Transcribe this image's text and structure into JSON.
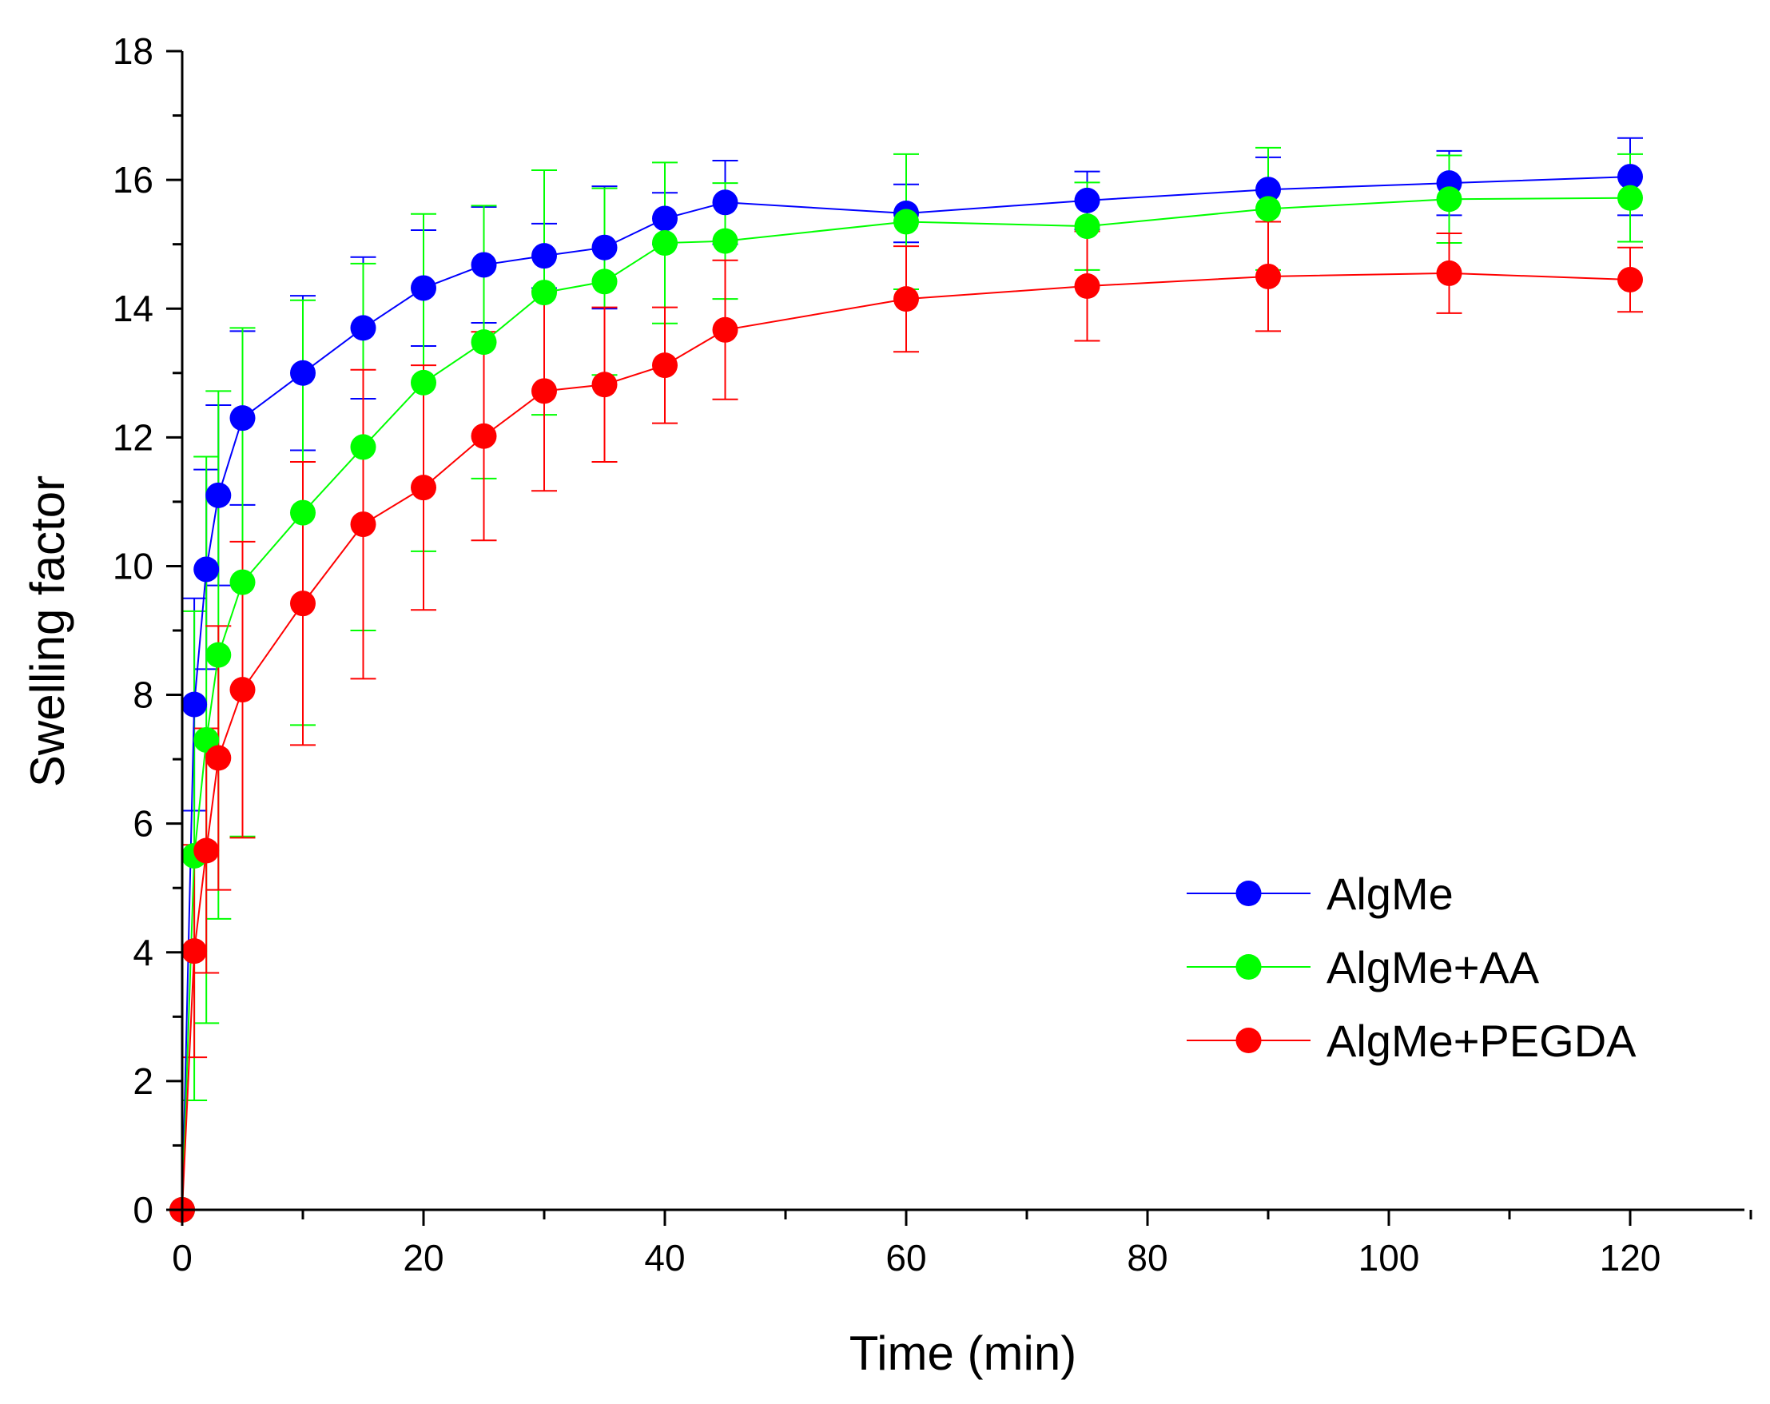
{
  "chart_data": {
    "type": "line",
    "title": "",
    "xlabel": "Time (min)",
    "ylabel": "Swelling factor",
    "xlim": [
      0,
      130
    ],
    "ylim": [
      0,
      18
    ],
    "xticks": [
      0,
      20,
      40,
      60,
      80,
      100,
      120
    ],
    "xminor": [
      10,
      30,
      50,
      70,
      90,
      110,
      130
    ],
    "yticks": [
      0,
      2,
      4,
      6,
      8,
      10,
      12,
      14,
      16,
      18
    ],
    "grid": false,
    "legend_position": "lower-right",
    "x": [
      0,
      1,
      2,
      3,
      5,
      10,
      15,
      20,
      25,
      30,
      35,
      40,
      45,
      60,
      75,
      90,
      105,
      120
    ],
    "series": [
      {
        "name": "AlgMe",
        "color": "#0000ff",
        "values": [
          0,
          7.85,
          9.95,
          11.1,
          12.3,
          13.0,
          13.7,
          14.32,
          14.68,
          14.82,
          14.95,
          15.4,
          15.65,
          15.48,
          15.68,
          15.85,
          15.95,
          16.05
        ],
        "errors": [
          0,
          1.65,
          1.55,
          1.4,
          1.35,
          1.2,
          1.1,
          0.9,
          0.9,
          0.5,
          0.95,
          0.4,
          0.65,
          0.45,
          0.45,
          0.5,
          0.5,
          0.6
        ]
      },
      {
        "name": "AlgMe+AA",
        "color": "#00ff00",
        "values": [
          0,
          5.5,
          7.3,
          8.62,
          9.75,
          10.83,
          11.85,
          12.85,
          13.48,
          14.25,
          14.42,
          15.02,
          15.05,
          15.35,
          15.28,
          15.55,
          15.7,
          15.72
        ],
        "errors": [
          0,
          3.8,
          4.4,
          4.1,
          3.95,
          3.3,
          2.85,
          2.62,
          2.12,
          1.9,
          1.45,
          1.25,
          0.9,
          1.05,
          0.68,
          0.95,
          0.68,
          0.68
        ]
      },
      {
        "name": "AlgMe+PEGDA",
        "color": "#ff0000",
        "values": [
          0,
          4.02,
          5.58,
          7.02,
          8.08,
          9.42,
          10.65,
          11.22,
          12.02,
          12.72,
          12.82,
          13.12,
          13.67,
          14.15,
          14.35,
          14.5,
          14.55,
          14.45
        ],
        "errors": [
          0,
          1.65,
          1.9,
          2.05,
          2.3,
          2.2,
          2.4,
          1.9,
          1.62,
          1.55,
          1.2,
          0.9,
          1.08,
          0.82,
          0.85,
          0.85,
          0.62,
          0.5
        ]
      }
    ]
  }
}
